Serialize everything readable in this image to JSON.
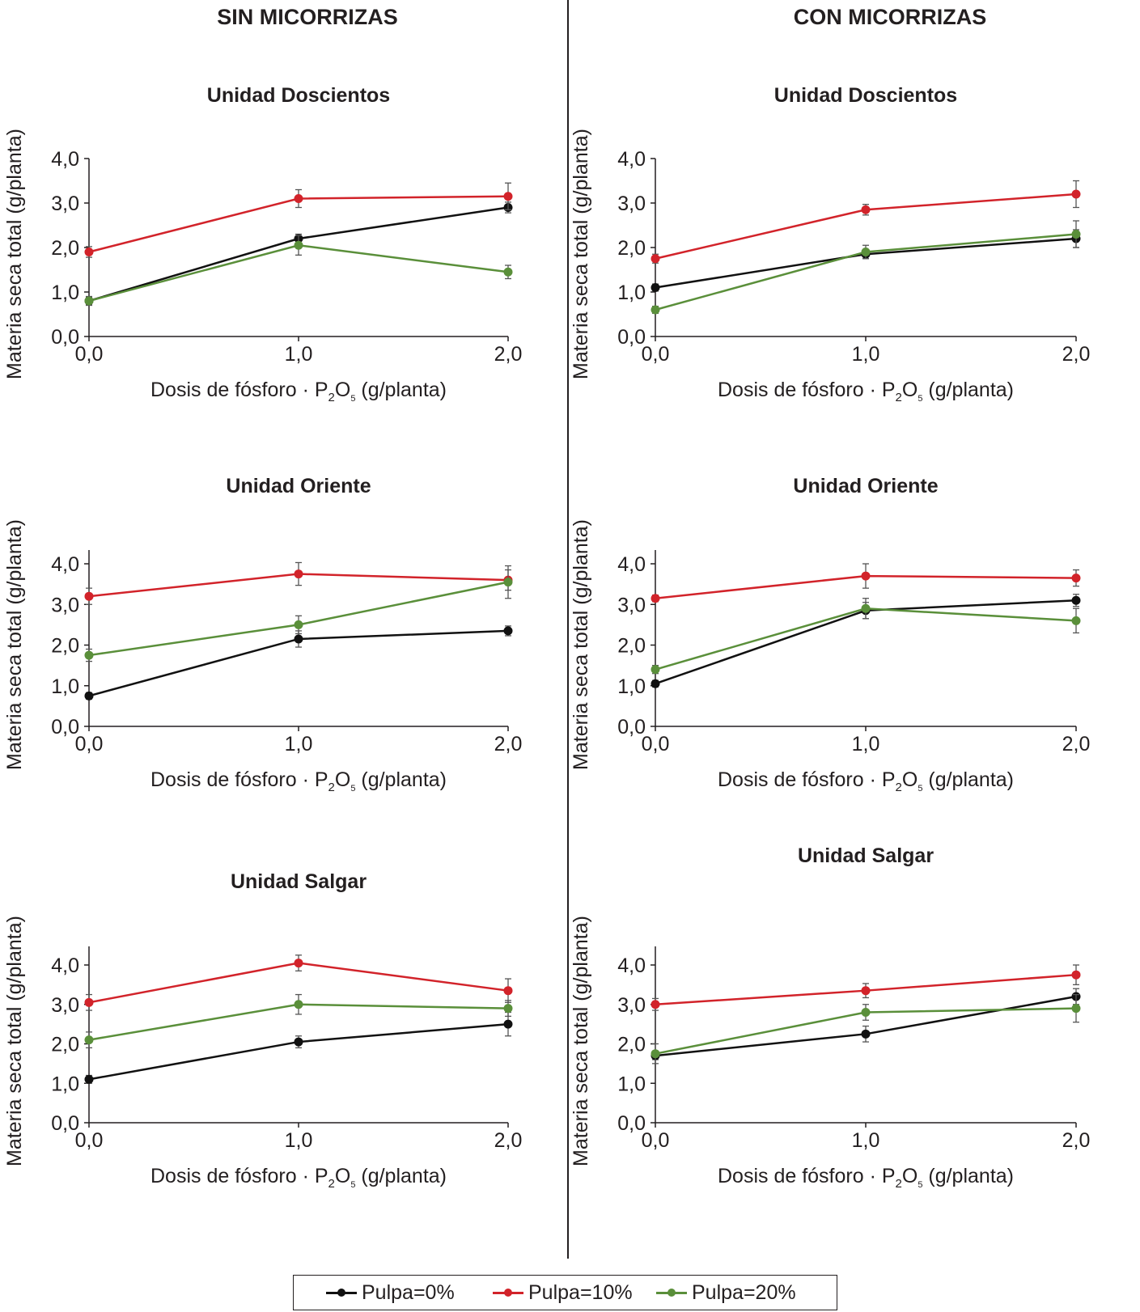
{
  "columns": {
    "left": "SIN MICORRIZAS",
    "right": "CON MICORRIZAS"
  },
  "legend": [
    {
      "label": "Pulpa=0%",
      "color": "#111111"
    },
    {
      "label": "Pulpa=10%",
      "color": "#d2232a"
    },
    {
      "label": "Pulpa=20%",
      "color": "#5a8f3a"
    }
  ],
  "chart_data": [
    {
      "type": "line",
      "column": "SIN MICORRIZAS",
      "title": "Unidad Doscientos",
      "xlabel": "Dosis de fósforo · P2O5 (g/planta)",
      "ylabel": "Materia seca total (g/planta)",
      "x": [
        0,
        1,
        2
      ],
      "xticks": [
        "0,0",
        "1,0",
        "2,0"
      ],
      "yticks": [
        "0,0",
        "1,0",
        "2,0",
        "3,0",
        "4,0"
      ],
      "ylim": [
        0,
        4
      ],
      "xlim": [
        0,
        2
      ],
      "series": [
        {
          "name": "Pulpa=0%",
          "values": [
            0.8,
            2.2,
            2.9
          ],
          "errors": [
            0.08,
            0.1,
            0.12
          ]
        },
        {
          "name": "Pulpa=10%",
          "values": [
            1.9,
            3.1,
            3.15
          ],
          "errors": [
            0.12,
            0.2,
            0.3
          ]
        },
        {
          "name": "Pulpa=20%",
          "values": [
            0.8,
            2.05,
            1.45
          ],
          "errors": [
            0.1,
            0.22,
            0.15
          ]
        }
      ]
    },
    {
      "type": "line",
      "column": "CON MICORRIZAS",
      "title": "Unidad Doscientos",
      "xlabel": "Dosis de fósforo · P2O5 (g/planta)",
      "ylabel": "Materia seca total (g/planta)",
      "x": [
        0,
        1,
        2
      ],
      "xticks": [
        "0,0",
        "1,0",
        "2,0"
      ],
      "yticks": [
        "0,0",
        "1,0",
        "2,0",
        "3,0",
        "4,0"
      ],
      "ylim": [
        0,
        4
      ],
      "xlim": [
        0,
        2
      ],
      "series": [
        {
          "name": "Pulpa=0%",
          "values": [
            1.1,
            1.85,
            2.2
          ],
          "errors": [
            0.08,
            0.1,
            0.2
          ]
        },
        {
          "name": "Pulpa=10%",
          "values": [
            1.75,
            2.85,
            3.2
          ],
          "errors": [
            0.1,
            0.12,
            0.3
          ]
        },
        {
          "name": "Pulpa=20%",
          "values": [
            0.6,
            1.9,
            2.3
          ],
          "errors": [
            0.08,
            0.15,
            0.3
          ]
        }
      ]
    },
    {
      "type": "line",
      "column": "SIN MICORRIZAS",
      "title": "Unidad Oriente",
      "xlabel": "Dosis de fósforo · P2O5 (g/planta)",
      "ylabel": "Materia seca total (g/planta)",
      "x": [
        0,
        1,
        2
      ],
      "xticks": [
        "0,0",
        "1,0",
        "2,0"
      ],
      "yticks": [
        "0,0",
        "1,0",
        "2,0",
        "3,0",
        "4,0"
      ],
      "ylim": [
        0,
        4
      ],
      "xlim": [
        0,
        2
      ],
      "series": [
        {
          "name": "Pulpa=0%",
          "values": [
            0.75,
            2.15,
            2.35
          ],
          "errors": [
            0.08,
            0.2,
            0.12
          ]
        },
        {
          "name": "Pulpa=10%",
          "values": [
            3.2,
            3.75,
            3.6
          ],
          "errors": [
            0.2,
            0.28,
            0.25
          ]
        },
        {
          "name": "Pulpa=20%",
          "values": [
            1.75,
            2.5,
            3.55
          ],
          "errors": [
            0.15,
            0.22,
            0.4
          ]
        }
      ]
    },
    {
      "type": "line",
      "column": "CON MICORRIZAS",
      "title": "Unidad Oriente",
      "xlabel": "Dosis de fósforo · P2O5 (g/planta)",
      "ylabel": "Materia seca total (g/planta)",
      "x": [
        0,
        1,
        2
      ],
      "xticks": [
        "0,0",
        "1,0",
        "2,0"
      ],
      "yticks": [
        "0,0",
        "1,0",
        "2,0",
        "3,0",
        "4,0"
      ],
      "ylim": [
        0,
        4
      ],
      "xlim": [
        0,
        2
      ],
      "series": [
        {
          "name": "Pulpa=0%",
          "values": [
            1.05,
            2.85,
            3.1
          ],
          "errors": [
            0.08,
            0.2,
            0.15
          ]
        },
        {
          "name": "Pulpa=10%",
          "values": [
            3.15,
            3.7,
            3.65
          ],
          "errors": [
            0.08,
            0.3,
            0.2
          ]
        },
        {
          "name": "Pulpa=20%",
          "values": [
            1.4,
            2.9,
            2.6
          ],
          "errors": [
            0.1,
            0.25,
            0.3
          ]
        }
      ]
    },
    {
      "type": "line",
      "column": "SIN MICORRIZAS",
      "title": "Unidad Salgar",
      "xlabel": "Dosis de fósforo · P2O5 (g/planta)",
      "ylabel": "Materia seca total (g/planta)",
      "x": [
        0,
        1,
        2
      ],
      "xticks": [
        "0,0",
        "1,0",
        "2,0"
      ],
      "yticks": [
        "0,0",
        "1,0",
        "2,0",
        "3,0",
        "4,0"
      ],
      "ylim": [
        0,
        4
      ],
      "xlim": [
        0,
        2
      ],
      "series": [
        {
          "name": "Pulpa=0%",
          "values": [
            1.1,
            2.05,
            2.5
          ],
          "errors": [
            0.1,
            0.15,
            0.3
          ]
        },
        {
          "name": "Pulpa=10%",
          "values": [
            3.05,
            4.05,
            3.35
          ],
          "errors": [
            0.2,
            0.2,
            0.3
          ]
        },
        {
          "name": "Pulpa=20%",
          "values": [
            2.1,
            3.0,
            2.9
          ],
          "errors": [
            0.2,
            0.25,
            0.2
          ]
        }
      ]
    },
    {
      "type": "line",
      "column": "CON MICORRIZAS",
      "title": "Unidad Salgar",
      "xlabel": "Dosis de fósforo · P2O5 (g/planta)",
      "ylabel": "Materia seca total (g/planta)",
      "x": [
        0,
        1,
        2
      ],
      "xticks": [
        "0,0",
        "1,0",
        "2,0"
      ],
      "yticks": [
        "0,0",
        "1,0",
        "2,0",
        "3,0",
        "4,0"
      ],
      "ylim": [
        0,
        4
      ],
      "xlim": [
        0,
        2
      ],
      "series": [
        {
          "name": "Pulpa=0%",
          "values": [
            1.7,
            2.25,
            3.2
          ],
          "errors": [
            0.1,
            0.2,
            0.2
          ]
        },
        {
          "name": "Pulpa=10%",
          "values": [
            3.0,
            3.35,
            3.75
          ],
          "errors": [
            0.15,
            0.18,
            0.25
          ]
        },
        {
          "name": "Pulpa=20%",
          "values": [
            1.75,
            2.8,
            2.9
          ],
          "errors": [
            0.25,
            0.2,
            0.35
          ]
        }
      ]
    }
  ]
}
